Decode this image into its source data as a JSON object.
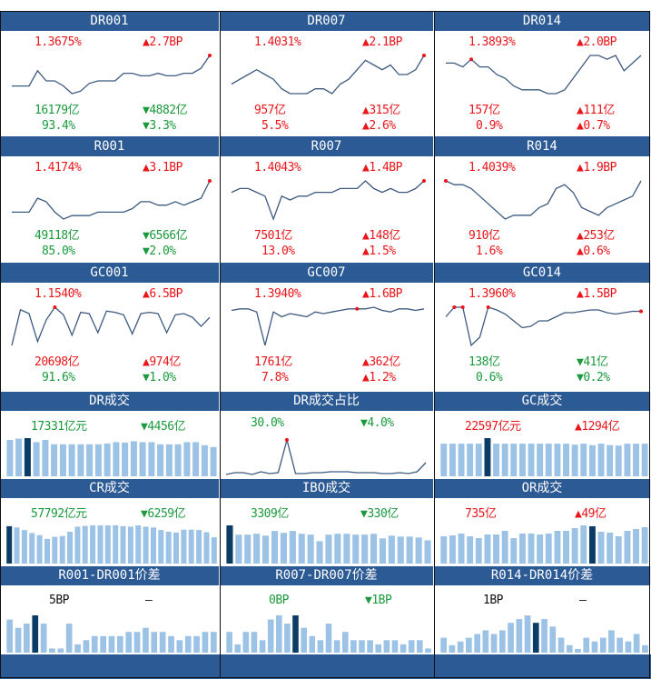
{
  "colors": {
    "header_bg": "#2c5a94",
    "line": "#3d5a80",
    "up": "#e8161b",
    "down": "#1a9a3c",
    "bar": "#9cc3e6",
    "bar_highlight": "#0c3c66",
    "marker": "#e8161b"
  },
  "chart_data": [
    {
      "id": "dr001",
      "title": "DR001",
      "type": "line",
      "rate": "1.3675%",
      "rate_color": "red",
      "change": "▲2.7BP",
      "change_color": "red",
      "volume": "16179亿",
      "volume_color": "green",
      "volume_change": "▼4882亿",
      "volume_change_color": "green",
      "share": "93.4%",
      "share_color": "green",
      "share_change": "▼3.3%",
      "share_change_color": "green",
      "values": [
        1.25,
        1.25,
        1.25,
        1.31,
        1.27,
        1.27,
        1.25,
        1.22,
        1.23,
        1.26,
        1.27,
        1.27,
        1.27,
        1.3,
        1.3,
        1.29,
        1.29,
        1.3,
        1.29,
        1.29,
        1.3,
        1.3,
        1.32,
        1.37
      ],
      "marker": [
        23
      ]
    },
    {
      "id": "dr007",
      "title": "DR007",
      "type": "line",
      "rate": "1.4031%",
      "rate_color": "red",
      "change": "▲2.1BP",
      "change_color": "red",
      "volume": "957亿",
      "volume_color": "red",
      "volume_change": "▲315亿",
      "volume_change_color": "red",
      "share": "5.5%",
      "share_color": "red",
      "share_change": "▲2.6%",
      "share_change_color": "red",
      "values": [
        1.34,
        1.35,
        1.36,
        1.37,
        1.36,
        1.35,
        1.33,
        1.32,
        1.32,
        1.32,
        1.33,
        1.33,
        1.32,
        1.34,
        1.35,
        1.37,
        1.39,
        1.38,
        1.37,
        1.38,
        1.36,
        1.36,
        1.37,
        1.4
      ],
      "marker": [
        23
      ]
    },
    {
      "id": "dr014",
      "title": "DR014",
      "type": "line",
      "rate": "1.3893%",
      "rate_color": "red",
      "change": "▲2.0BP",
      "change_color": "red",
      "volume": "157亿",
      "volume_color": "red",
      "volume_change": "▲111亿",
      "volume_change_color": "red",
      "share": "0.9%",
      "share_color": "red",
      "share_change": "▲0.7%",
      "share_change_color": "red",
      "values": [
        1.37,
        1.37,
        1.36,
        1.38,
        1.36,
        1.36,
        1.34,
        1.33,
        1.31,
        1.3,
        1.3,
        1.3,
        1.29,
        1.29,
        1.3,
        1.33,
        1.36,
        1.39,
        1.39,
        1.38,
        1.39,
        1.35,
        1.37,
        1.39
      ],
      "marker": [
        3
      ]
    },
    {
      "id": "r001",
      "title": "R001",
      "type": "line",
      "rate": "1.4174%",
      "rate_color": "red",
      "change": "▲3.1BP",
      "change_color": "red",
      "volume": "49118亿",
      "volume_color": "green",
      "volume_change": "▼6566亿",
      "volume_change_color": "green",
      "share": "85.0%",
      "share_color": "green",
      "share_change": "▼2.0%",
      "share_change_color": "green",
      "values": [
        1.32,
        1.32,
        1.32,
        1.36,
        1.35,
        1.32,
        1.3,
        1.31,
        1.31,
        1.31,
        1.32,
        1.32,
        1.32,
        1.32,
        1.33,
        1.35,
        1.35,
        1.34,
        1.34,
        1.35,
        1.34,
        1.35,
        1.36,
        1.41
      ],
      "marker": [
        23
      ]
    },
    {
      "id": "r007",
      "title": "R007",
      "type": "line",
      "rate": "1.4043%",
      "rate_color": "red",
      "change": "▲1.4BP",
      "change_color": "red",
      "volume": "7501亿",
      "volume_color": "red",
      "volume_change": "▲148亿",
      "volume_change_color": "red",
      "share": "13.0%",
      "share_color": "red",
      "share_change": "▲1.5%",
      "share_change_color": "red",
      "values": [
        1.37,
        1.38,
        1.38,
        1.37,
        1.36,
        1.3,
        1.36,
        1.35,
        1.36,
        1.36,
        1.37,
        1.37,
        1.37,
        1.38,
        1.38,
        1.38,
        1.4,
        1.38,
        1.37,
        1.38,
        1.37,
        1.37,
        1.38,
        1.4
      ],
      "marker": [
        23
      ]
    },
    {
      "id": "r014",
      "title": "R014",
      "type": "line",
      "rate": "1.4039%",
      "rate_color": "red",
      "change": "▲1.9BP",
      "change_color": "red",
      "volume": "910亿",
      "volume_color": "red",
      "volume_change": "▲253亿",
      "volume_change_color": "red",
      "share": "1.6%",
      "share_color": "red",
      "share_change": "▲0.6%",
      "share_change_color": "red",
      "values": [
        1.4,
        1.39,
        1.39,
        1.38,
        1.36,
        1.34,
        1.32,
        1.3,
        1.31,
        1.31,
        1.31,
        1.33,
        1.34,
        1.38,
        1.39,
        1.37,
        1.33,
        1.32,
        1.31,
        1.33,
        1.34,
        1.35,
        1.36,
        1.4
      ],
      "marker": [
        0
      ]
    },
    {
      "id": "gc001",
      "title": "GC001",
      "type": "line",
      "rate": "1.1540%",
      "rate_color": "red",
      "change": "▲6.5BP",
      "change_color": "red",
      "volume": "20698亿",
      "volume_color": "red",
      "volume_change": "▲974亿",
      "volume_change_color": "red",
      "share": "91.6%",
      "share_color": "green",
      "share_change": "▼1.0%",
      "share_change_color": "green",
      "values": [
        0.9,
        1.18,
        1.15,
        0.93,
        1.1,
        1.2,
        1.14,
        0.98,
        1.16,
        1.15,
        1.0,
        1.17,
        1.16,
        1.14,
        0.99,
        1.15,
        1.16,
        1.15,
        1.0,
        1.14,
        1.15,
        1.12,
        1.05,
        1.12
      ],
      "marker": [
        5
      ]
    },
    {
      "id": "gc007",
      "title": "GC007",
      "type": "line",
      "rate": "1.3940%",
      "rate_color": "red",
      "change": "▲1.6BP",
      "change_color": "red",
      "volume": "1761亿",
      "volume_color": "red",
      "volume_change": "▲362亿",
      "volume_change_color": "red",
      "share": "7.8%",
      "share_color": "red",
      "share_change": "▲1.2%",
      "share_change_color": "red",
      "values": [
        1.37,
        1.38,
        1.38,
        1.36,
        1.15,
        1.36,
        1.33,
        1.35,
        1.34,
        1.33,
        1.36,
        1.35,
        1.36,
        1.37,
        1.38,
        1.38,
        1.38,
        1.39,
        1.37,
        1.36,
        1.38,
        1.38,
        1.37,
        1.38
      ],
      "marker": [
        15
      ]
    },
    {
      "id": "gc014",
      "title": "GC014",
      "type": "line",
      "rate": "1.3960%",
      "rate_color": "red",
      "change": "▲1.5BP",
      "change_color": "red",
      "volume": "138亿",
      "volume_color": "green",
      "volume_change": "▼41亿",
      "volume_change_color": "green",
      "share": "0.6%",
      "share_color": "green",
      "share_change": "▼0.2%",
      "share_change_color": "green",
      "values": [
        1.33,
        1.4,
        1.4,
        1.12,
        1.18,
        1.4,
        1.38,
        1.35,
        1.3,
        1.25,
        1.26,
        1.3,
        1.3,
        1.33,
        1.36,
        1.36,
        1.37,
        1.38,
        1.38,
        1.36,
        1.35,
        1.36,
        1.37,
        1.37
      ],
      "marker": [
        1,
        2,
        5,
        23
      ]
    },
    {
      "id": "dr_vol",
      "title": "DR成交",
      "type": "bar",
      "value": "17331亿元",
      "value_color": "green",
      "change": "▼4456亿",
      "change_color": "green",
      "values": [
        82,
        85,
        86,
        77,
        82,
        72,
        72,
        72,
        72,
        72,
        72,
        74,
        77,
        76,
        79,
        77,
        77,
        72,
        72,
        72,
        77,
        77,
        70,
        66
      ],
      "highlight": [
        2
      ]
    },
    {
      "id": "dr_share",
      "title": "DR成交占比",
      "type": "line",
      "value": "30.0%",
      "value_color": "green",
      "change": "▼4.0%",
      "change_color": "green",
      "values": [
        0.17,
        0.19,
        0.19,
        0.17,
        0.2,
        0.18,
        0.19,
        0.55,
        0.18,
        0.18,
        0.19,
        0.19,
        0.2,
        0.2,
        0.2,
        0.19,
        0.19,
        0.19,
        0.18,
        0.18,
        0.19,
        0.18,
        0.2,
        0.3
      ],
      "marker": [
        7
      ]
    },
    {
      "id": "gc_vol",
      "title": "GC成交",
      "type": "bar",
      "value": "22597亿元",
      "value_color": "red",
      "change": "▲1294亿",
      "change_color": "red",
      "values": [
        70,
        70,
        70,
        70,
        70,
        82,
        70,
        70,
        70,
        70,
        70,
        70,
        70,
        70,
        70,
        68,
        70,
        67,
        70,
        67,
        66,
        70,
        70,
        70
      ],
      "highlight": [
        5
      ]
    },
    {
      "id": "cr_vol",
      "title": "CR成交",
      "type": "bar",
      "value": "57792亿元",
      "value_color": "green",
      "change": "▼6259亿",
      "change_color": "green",
      "values": [
        88,
        85,
        79,
        72,
        67,
        58,
        63,
        65,
        75,
        87,
        89,
        90,
        90,
        90,
        90,
        88,
        87,
        90,
        87,
        85,
        79,
        75,
        73,
        80,
        80,
        79,
        74,
        62
      ],
      "highlight": [
        0
      ]
    },
    {
      "id": "ibo_vol",
      "title": "IBO成交",
      "type": "bar",
      "value": "3309亿",
      "value_color": "green",
      "change": "▼330亿",
      "change_color": "green",
      "values": [
        82,
        62,
        62,
        64,
        60,
        70,
        66,
        70,
        64,
        62,
        48,
        62,
        64,
        64,
        62,
        62,
        64,
        54,
        60,
        58,
        58,
        56,
        50
      ],
      "highlight": [
        0
      ]
    },
    {
      "id": "or_vol",
      "title": "OR成交",
      "type": "bar",
      "value": "735亿",
      "value_color": "red",
      "change": "▲49亿",
      "change_color": "red",
      "values": [
        60,
        62,
        66,
        60,
        56,
        64,
        64,
        72,
        56,
        66,
        66,
        64,
        66,
        72,
        72,
        78,
        84,
        82,
        70,
        68,
        60,
        72,
        76,
        80
      ],
      "highlight": [
        17
      ]
    },
    {
      "id": "r001_spread",
      "title": "R001-DR001价差",
      "type": "bar",
      "value": "5BP",
      "value_color": "black",
      "change": "–",
      "change_color": "black",
      "values": [
        8,
        6,
        7,
        9,
        7,
        1,
        1,
        7,
        2,
        3,
        4,
        4,
        4,
        4,
        5,
        5,
        6,
        5,
        5,
        4,
        3,
        4,
        4,
        5,
        5
      ],
      "highlight": [
        3
      ]
    },
    {
      "id": "r007_spread",
      "title": "R007-DR007价差",
      "type": "bar",
      "value": "0BP",
      "value_color": "green",
      "change": "▼1BP",
      "change_color": "green",
      "values": [
        5,
        2,
        5,
        5,
        3,
        8,
        9,
        7,
        9,
        6,
        4,
        3,
        7,
        3,
        5,
        3,
        3,
        3,
        2,
        3,
        3,
        2,
        3,
        3,
        1
      ],
      "highlight": [
        8
      ]
    },
    {
      "id": "r014_spread",
      "title": "R014-DR014价差",
      "type": "bar",
      "value": "1BP",
      "value_color": "black",
      "change": "–",
      "change_color": "black",
      "values": [
        4,
        2,
        3,
        4,
        5,
        6,
        5,
        6,
        8,
        9,
        10,
        8,
        9,
        7,
        4,
        2,
        1,
        4,
        3,
        4,
        6,
        4,
        3,
        5,
        2
      ],
      "highlight": [
        11
      ]
    }
  ]
}
